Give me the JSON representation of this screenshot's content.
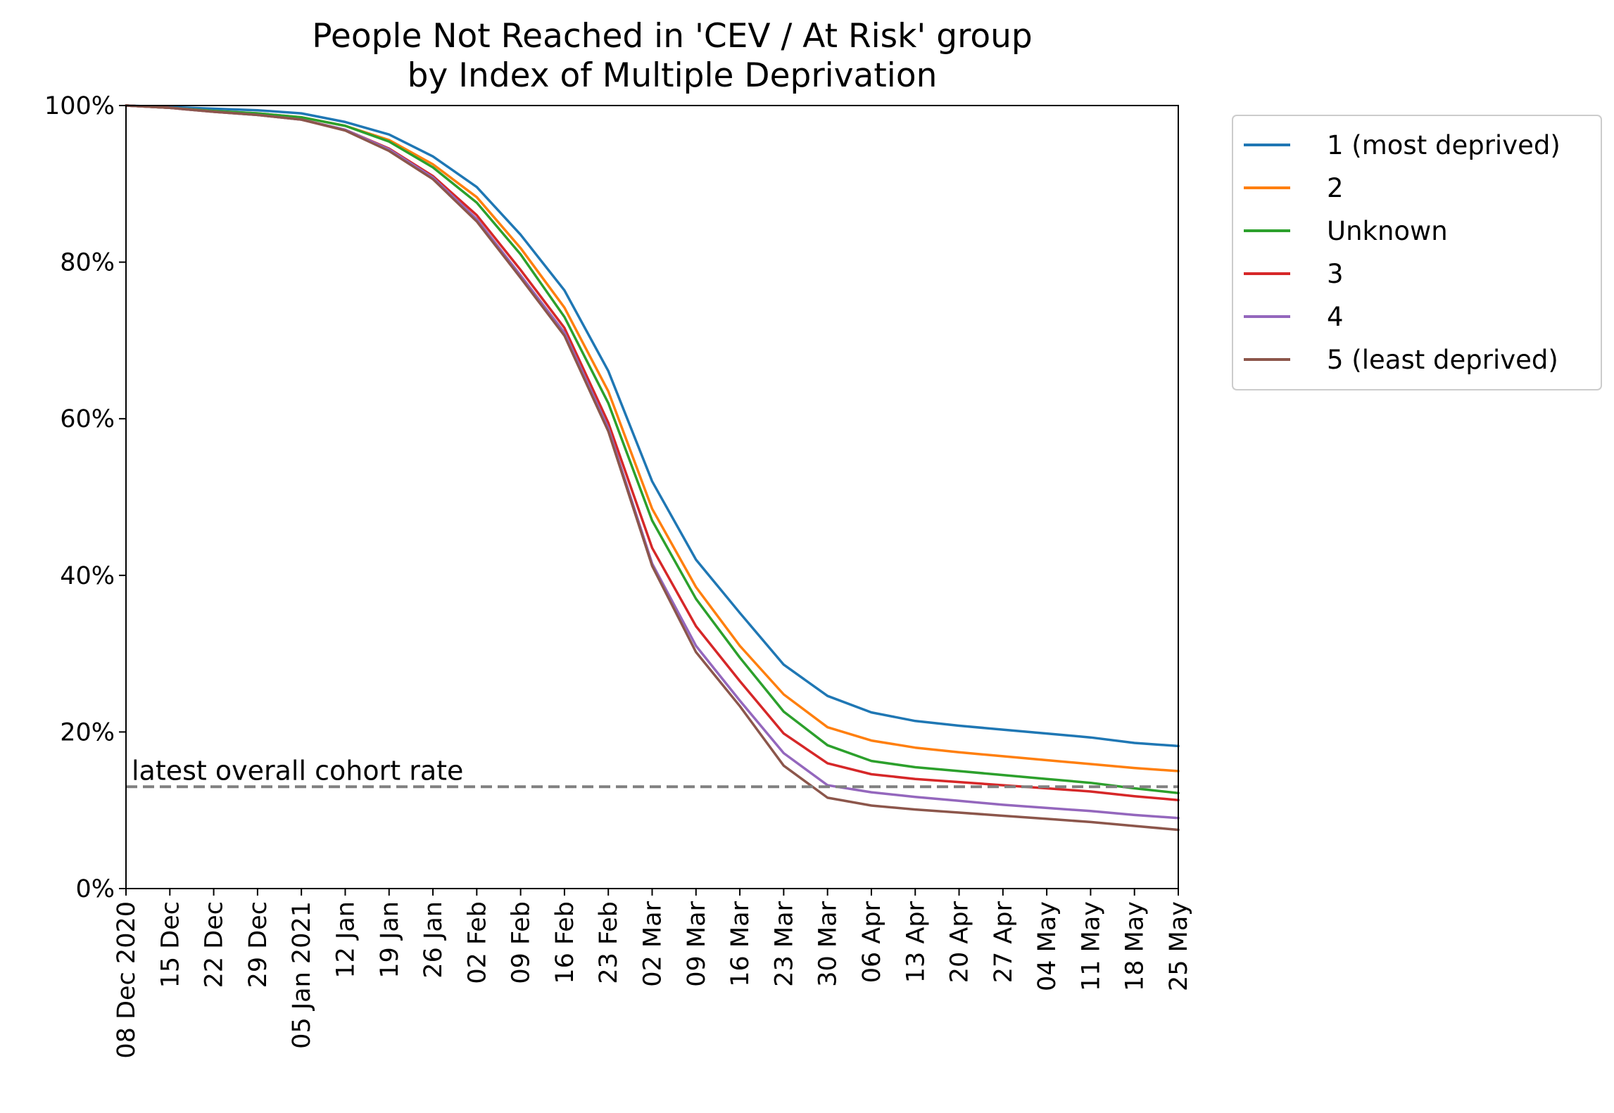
{
  "chart_data": {
    "type": "line",
    "title_lines": [
      "People Not Reached in 'CEV / At Risk' group",
      "by Index of Multiple Deprivation"
    ],
    "xlabel": "",
    "ylabel": "",
    "ylim": [
      0,
      100
    ],
    "y_ticks": [
      "0%",
      "20%",
      "40%",
      "60%",
      "80%",
      "100%"
    ],
    "y_tick_values": [
      0,
      20,
      40,
      60,
      80,
      100
    ],
    "x_tick_labels": [
      "08 Dec 2020",
      "15 Dec",
      "22 Dec",
      "29 Dec",
      "05 Jan 2021",
      "12 Jan",
      "19 Jan",
      "26 Jan",
      "02 Feb",
      "09 Feb",
      "16 Feb",
      "23 Feb",
      "02 Mar",
      "09 Mar",
      "16 Mar",
      "23 Mar",
      "30 Mar",
      "06 Apr",
      "13 Apr",
      "20 Apr",
      "27 Apr",
      "04 May",
      "11 May",
      "18 May",
      "25 May"
    ],
    "x_dates": [
      "2020-12-08",
      "2020-12-15",
      "2020-12-22",
      "2020-12-29",
      "2021-01-05",
      "2021-01-12",
      "2021-01-19",
      "2021-01-26",
      "2021-02-02",
      "2021-02-09",
      "2021-02-16",
      "2021-02-23",
      "2021-03-02",
      "2021-03-09",
      "2021-03-16",
      "2021-03-23",
      "2021-03-30",
      "2021-04-06",
      "2021-04-13",
      "2021-04-20",
      "2021-04-27",
      "2021-05-04",
      "2021-05-11",
      "2021-05-18",
      "2021-05-25"
    ],
    "legend_position": "outside-right-top",
    "grid": false,
    "series": [
      {
        "name": "1 (most deprived)",
        "color": "#1f77b4",
        "values": [
          100,
          99.8,
          99.6,
          99.4,
          99.0,
          97.9,
          96.3,
          93.5,
          89.6,
          83.5,
          76.4,
          66.1,
          52.0,
          42.0,
          35.2,
          28.6,
          24.6,
          22.5,
          21.4,
          20.8,
          20.3,
          19.8,
          19.3,
          18.6,
          18.2
        ]
      },
      {
        "name": "2",
        "color": "#ff7f0e",
        "values": [
          100,
          99.7,
          99.3,
          99.0,
          98.5,
          97.4,
          95.6,
          92.5,
          88.3,
          81.8,
          74.2,
          63.5,
          48.5,
          38.5,
          31.0,
          24.8,
          20.6,
          18.9,
          18.0,
          17.4,
          16.9,
          16.4,
          15.9,
          15.4,
          15.0
        ]
      },
      {
        "name": "Unknown",
        "color": "#2ca02c",
        "values": [
          100,
          99.7,
          99.3,
          99.0,
          98.5,
          97.4,
          95.4,
          92.1,
          87.6,
          81.0,
          73.0,
          62.0,
          47.0,
          37.0,
          29.5,
          22.6,
          18.3,
          16.3,
          15.5,
          15.0,
          14.5,
          14.0,
          13.5,
          12.8,
          12.2
        ]
      },
      {
        "name": "3",
        "color": "#d62728",
        "values": [
          100,
          99.7,
          99.2,
          98.8,
          98.2,
          96.9,
          94.5,
          91.0,
          86.0,
          79.0,
          71.6,
          59.5,
          43.5,
          33.5,
          26.5,
          19.8,
          16.0,
          14.6,
          14.0,
          13.6,
          13.2,
          12.8,
          12.4,
          11.8,
          11.3
        ]
      },
      {
        "name": "4",
        "color": "#9467bd",
        "values": [
          100,
          99.7,
          99.2,
          98.8,
          98.2,
          96.9,
          94.4,
          90.8,
          85.5,
          78.3,
          71.0,
          58.8,
          41.5,
          31.0,
          24.0,
          17.3,
          13.2,
          12.3,
          11.7,
          11.2,
          10.7,
          10.3,
          9.9,
          9.4,
          9.0
        ]
      },
      {
        "name": "5 (least deprived)",
        "color": "#8c564b",
        "values": [
          100,
          99.7,
          99.2,
          98.8,
          98.2,
          96.8,
          94.2,
          90.6,
          85.2,
          78.0,
          70.6,
          58.4,
          41.2,
          30.2,
          23.3,
          15.7,
          11.6,
          10.6,
          10.1,
          9.7,
          9.3,
          8.9,
          8.5,
          8.0,
          7.5
        ]
      }
    ],
    "reference_line": {
      "label": "latest overall cohort rate",
      "value": 13,
      "color": "#808080",
      "style": "dashed"
    }
  }
}
